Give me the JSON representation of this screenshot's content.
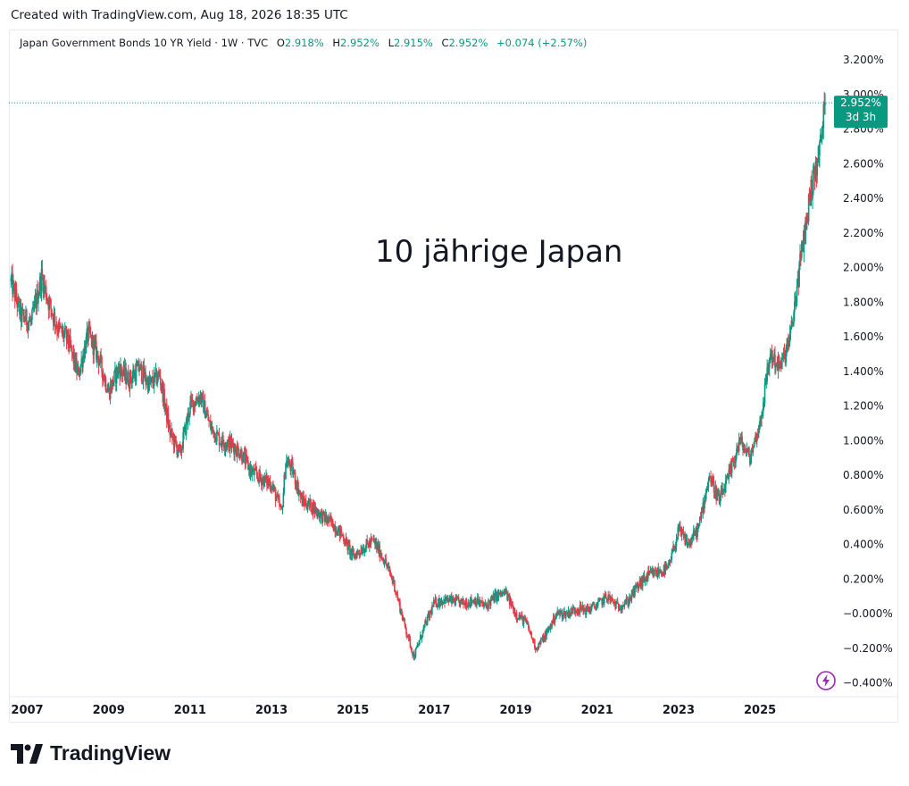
{
  "header": {
    "created_text": "Created with TradingView.com, Aug 18, 2026 18:35 UTC"
  },
  "legend": {
    "symbol": "Japan Government Bonds 10 YR Yield · 1W · TVC",
    "o_label": "O",
    "o_value": "2.918%",
    "h_label": "H",
    "h_value": "2.952%",
    "l_label": "L",
    "l_value": "2.915%",
    "c_label": "C",
    "c_value": "2.952%",
    "change": "+0.074 (+2.57%)"
  },
  "price_tag": {
    "value": "2.952%",
    "countdown": "3d 3h"
  },
  "brand": {
    "name": "TradingView"
  },
  "colors": {
    "up": "#089981",
    "down": "#f23645",
    "price_tag": "#089981",
    "bolt": "#9c27b0"
  },
  "chart_data": {
    "type": "candlestick",
    "annotation": "10 jährige Japan",
    "ylim": [
      -0.48,
      3.34
    ],
    "xlim": [
      2006.55,
      2026.95
    ],
    "y_ticks": [
      {
        "value": 3.2,
        "label": "3.200%"
      },
      {
        "value": 3.0,
        "label": "3.000%"
      },
      {
        "value": 2.8,
        "label": "2.800%"
      },
      {
        "value": 2.6,
        "label": "2.600%"
      },
      {
        "value": 2.4,
        "label": "2.400%"
      },
      {
        "value": 2.2,
        "label": "2.200%"
      },
      {
        "value": 2.0,
        "label": "2.000%"
      },
      {
        "value": 1.8,
        "label": "1.800%"
      },
      {
        "value": 1.6,
        "label": "1.600%"
      },
      {
        "value": 1.4,
        "label": "1.400%"
      },
      {
        "value": 1.2,
        "label": "1.200%"
      },
      {
        "value": 1.0,
        "label": "1.000%"
      },
      {
        "value": 0.8,
        "label": "0.800%"
      },
      {
        "value": 0.6,
        "label": "0.600%"
      },
      {
        "value": 0.4,
        "label": "0.400%"
      },
      {
        "value": 0.2,
        "label": "0.200%"
      },
      {
        "value": 0.0,
        "label": "−0.000%"
      },
      {
        "value": -0.2,
        "label": "−0.200%"
      },
      {
        "value": -0.4,
        "label": "−0.400%"
      }
    ],
    "x_ticks": [
      {
        "value": 2007,
        "label": "2007"
      },
      {
        "value": 2009,
        "label": "2009"
      },
      {
        "value": 2011,
        "label": "2011"
      },
      {
        "value": 2013,
        "label": "2013"
      },
      {
        "value": 2015,
        "label": "2015"
      },
      {
        "value": 2017,
        "label": "2017"
      },
      {
        "value": 2019,
        "label": "2019"
      },
      {
        "value": 2021,
        "label": "2021"
      },
      {
        "value": 2023,
        "label": "2023"
      },
      {
        "value": 2025,
        "label": "2025"
      }
    ],
    "last_price": 2.952,
    "series": [
      {
        "values_x": [
          2006.6,
          2006.85,
          2007.1,
          2007.35,
          2007.5,
          2007.75,
          2008.0,
          2008.25,
          2008.5,
          2008.75,
          2009.0,
          2009.25,
          2009.5,
          2009.75,
          2010.0,
          2010.25,
          2010.5,
          2010.75,
          2011.0,
          2011.25,
          2011.5,
          2011.75,
          2012.0,
          2012.25,
          2012.5,
          2012.75,
          2013.0,
          2013.25,
          2013.35,
          2013.5,
          2013.75,
          2014.0,
          2014.25,
          2014.5,
          2014.75,
          2015.0,
          2015.25,
          2015.5,
          2015.75,
          2016.0,
          2016.25,
          2016.5,
          2016.75,
          2017.0,
          2017.25,
          2017.5,
          2017.75,
          2018.0,
          2018.25,
          2018.5,
          2018.75,
          2019.0,
          2019.25,
          2019.5,
          2019.75,
          2020.0,
          2020.25,
          2020.5,
          2020.75,
          2021.0,
          2021.25,
          2021.5,
          2021.75,
          2022.0,
          2022.25,
          2022.5,
          2022.75,
          2023.0,
          2023.25,
          2023.5,
          2023.75,
          2024.0,
          2024.25,
          2024.5,
          2024.75,
          2025.0,
          2025.25,
          2025.5,
          2025.75,
          2026.0,
          2026.25,
          2026.45,
          2026.6
        ],
        "values_y": [
          1.92,
          1.72,
          1.68,
          1.95,
          1.82,
          1.65,
          1.58,
          1.38,
          1.62,
          1.48,
          1.28,
          1.42,
          1.35,
          1.42,
          1.32,
          1.38,
          1.05,
          0.92,
          1.2,
          1.26,
          1.08,
          1.0,
          0.98,
          0.93,
          0.82,
          0.78,
          0.75,
          0.58,
          0.88,
          0.84,
          0.65,
          0.62,
          0.56,
          0.52,
          0.45,
          0.33,
          0.38,
          0.42,
          0.32,
          0.18,
          -0.05,
          -0.25,
          -0.08,
          0.06,
          0.08,
          0.07,
          0.06,
          0.08,
          0.04,
          0.1,
          0.12,
          0.0,
          -0.05,
          -0.2,
          -0.12,
          0.0,
          0.0,
          0.03,
          0.02,
          0.05,
          0.1,
          0.04,
          0.07,
          0.16,
          0.22,
          0.24,
          0.26,
          0.48,
          0.4,
          0.5,
          0.8,
          0.65,
          0.8,
          1.0,
          0.9,
          1.1,
          1.5,
          1.42,
          1.6,
          2.05,
          2.45,
          2.65,
          2.952
        ]
      }
    ]
  }
}
